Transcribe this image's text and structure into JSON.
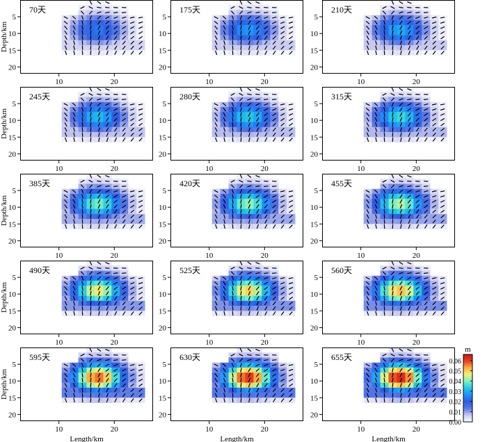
{
  "chart_data": {
    "type": "heatmap",
    "description_of_fields": "panel grid of fault slip distributions at successive times",
    "panel_labels": [
      "70天",
      "175天",
      "210天",
      "245天",
      "280天",
      "315天",
      "385天",
      "420天",
      "455天",
      "490天",
      "525天",
      "560天",
      "595天",
      "630天",
      "655天"
    ],
    "peak_slip_m": [
      0.024,
      0.028,
      0.03,
      0.032,
      0.034,
      0.036,
      0.04,
      0.042,
      0.044,
      0.048,
      0.05,
      0.052,
      0.058,
      0.062,
      0.064
    ],
    "slip_center_km": {
      "length": 17,
      "depth": 9
    },
    "xlabel": "Length/km",
    "ylabel": "Depth/km",
    "x_ticks": [
      10,
      20
    ],
    "y_ticks": [
      5,
      10,
      15,
      20
    ],
    "xlim": [
      3,
      27
    ],
    "ylim": [
      22,
      0
    ],
    "colorbar": {
      "unit": "m",
      "ticks": [
        0.0,
        0.01,
        0.02,
        0.03,
        0.04,
        0.05,
        0.06
      ],
      "tick_labels": [
        "0.00",
        "0.01",
        "0.02",
        "0.03",
        "0.04",
        "0.05",
        "0.06"
      ],
      "range": [
        0,
        0.066
      ],
      "colors": [
        "#ffffff",
        "#c8c8f0",
        "#5a78e6",
        "#2f5ce0",
        "#1e90ff",
        "#22c8e6",
        "#7af0c8",
        "#f0f07a",
        "#ffb040",
        "#e84020",
        "#c81818"
      ]
    }
  }
}
